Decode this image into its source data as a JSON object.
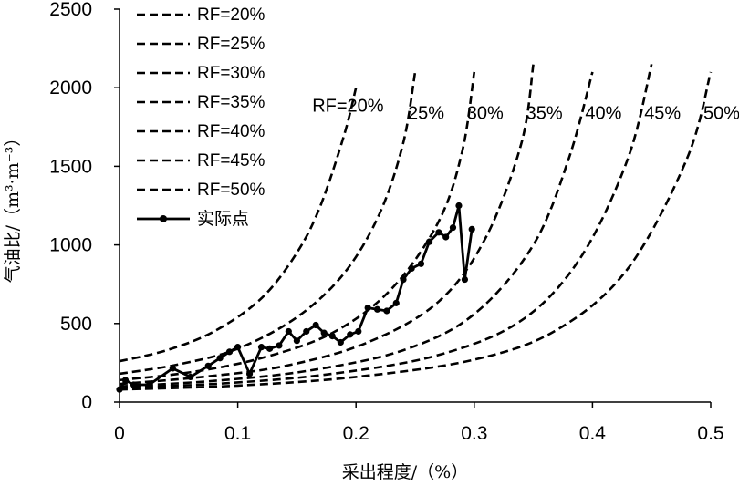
{
  "chart_data": {
    "type": "line",
    "xlabel": "采出程度/（%）",
    "ylabel": "气油比/（m³·m⁻³）",
    "xlim": [
      0,
      0.5
    ],
    "ylim": [
      0,
      2500
    ],
    "x_ticks": [
      "0",
      "0.1",
      "0.2",
      "0.3",
      "0.4",
      "0.5"
    ],
    "y_ticks": [
      "0",
      "500",
      "1000",
      "1500",
      "2000",
      "2500"
    ],
    "grid": false,
    "legend_position": "top-left",
    "legend": [
      "RF=20%",
      "RF=25%",
      "RF=30%",
      "RF=35%",
      "RF=40%",
      "RF=45%",
      "RF=50%",
      "实际点"
    ],
    "curve_labels": [
      "RF=20%",
      "25%",
      "30%",
      "35%",
      "40%",
      "45%",
      "50%"
    ],
    "series": [
      {
        "name": "RF=20%",
        "style": "dashed",
        "x": [
          0,
          0.04,
          0.08,
          0.12,
          0.15,
          0.17,
          0.19,
          0.2
        ],
        "y": [
          260,
          330,
          450,
          660,
          950,
          1250,
          1700,
          2000
        ]
      },
      {
        "name": "RF=25%",
        "style": "dashed",
        "x": [
          0,
          0.05,
          0.1,
          0.15,
          0.19,
          0.22,
          0.24,
          0.25
        ],
        "y": [
          180,
          240,
          340,
          540,
          820,
          1200,
          1650,
          2100
        ]
      },
      {
        "name": "RF=30%",
        "style": "dashed",
        "x": [
          0,
          0.06,
          0.12,
          0.18,
          0.23,
          0.27,
          0.29,
          0.3
        ],
        "y": [
          140,
          190,
          280,
          440,
          720,
          1150,
          1600,
          2100
        ]
      },
      {
        "name": "RF=35%",
        "style": "dashed",
        "x": [
          0,
          0.07,
          0.14,
          0.21,
          0.27,
          0.31,
          0.34,
          0.35
        ],
        "y": [
          115,
          160,
          230,
          380,
          640,
          1050,
          1650,
          2150
        ]
      },
      {
        "name": "RF=40%",
        "style": "dashed",
        "x": [
          0,
          0.08,
          0.16,
          0.24,
          0.3,
          0.35,
          0.38,
          0.4
        ],
        "y": [
          100,
          135,
          200,
          330,
          560,
          1000,
          1550,
          2100
        ]
      },
      {
        "name": "RF=45%",
        "style": "dashed",
        "x": [
          0,
          0.09,
          0.18,
          0.27,
          0.34,
          0.39,
          0.43,
          0.45
        ],
        "y": [
          90,
          120,
          180,
          300,
          520,
          920,
          1550,
          2150
        ]
      },
      {
        "name": "RF=50%",
        "style": "dashed",
        "x": [
          0,
          0.1,
          0.2,
          0.3,
          0.37,
          0.43,
          0.48,
          0.5
        ],
        "y": [
          80,
          105,
          160,
          270,
          460,
          850,
          1550,
          2100
        ]
      },
      {
        "name": "实际点",
        "style": "solid-markers",
        "x": [
          0,
          0.005,
          0.012,
          0.025,
          0.045,
          0.06,
          0.075,
          0.085,
          0.093,
          0.1,
          0.11,
          0.12,
          0.127,
          0.135,
          0.143,
          0.15,
          0.158,
          0.166,
          0.173,
          0.18,
          0.187,
          0.195,
          0.202,
          0.21,
          0.218,
          0.226,
          0.234,
          0.24,
          0.247,
          0.255,
          0.262,
          0.27,
          0.276,
          0.282,
          0.287,
          0.292,
          0.298
        ],
        "y": [
          80,
          140,
          110,
          110,
          215,
          160,
          230,
          280,
          320,
          350,
          180,
          350,
          340,
          360,
          450,
          390,
          450,
          490,
          440,
          420,
          380,
          430,
          450,
          600,
          590,
          580,
          630,
          780,
          850,
          880,
          1020,
          1080,
          1050,
          1110,
          1250,
          780,
          1100
        ]
      }
    ]
  }
}
